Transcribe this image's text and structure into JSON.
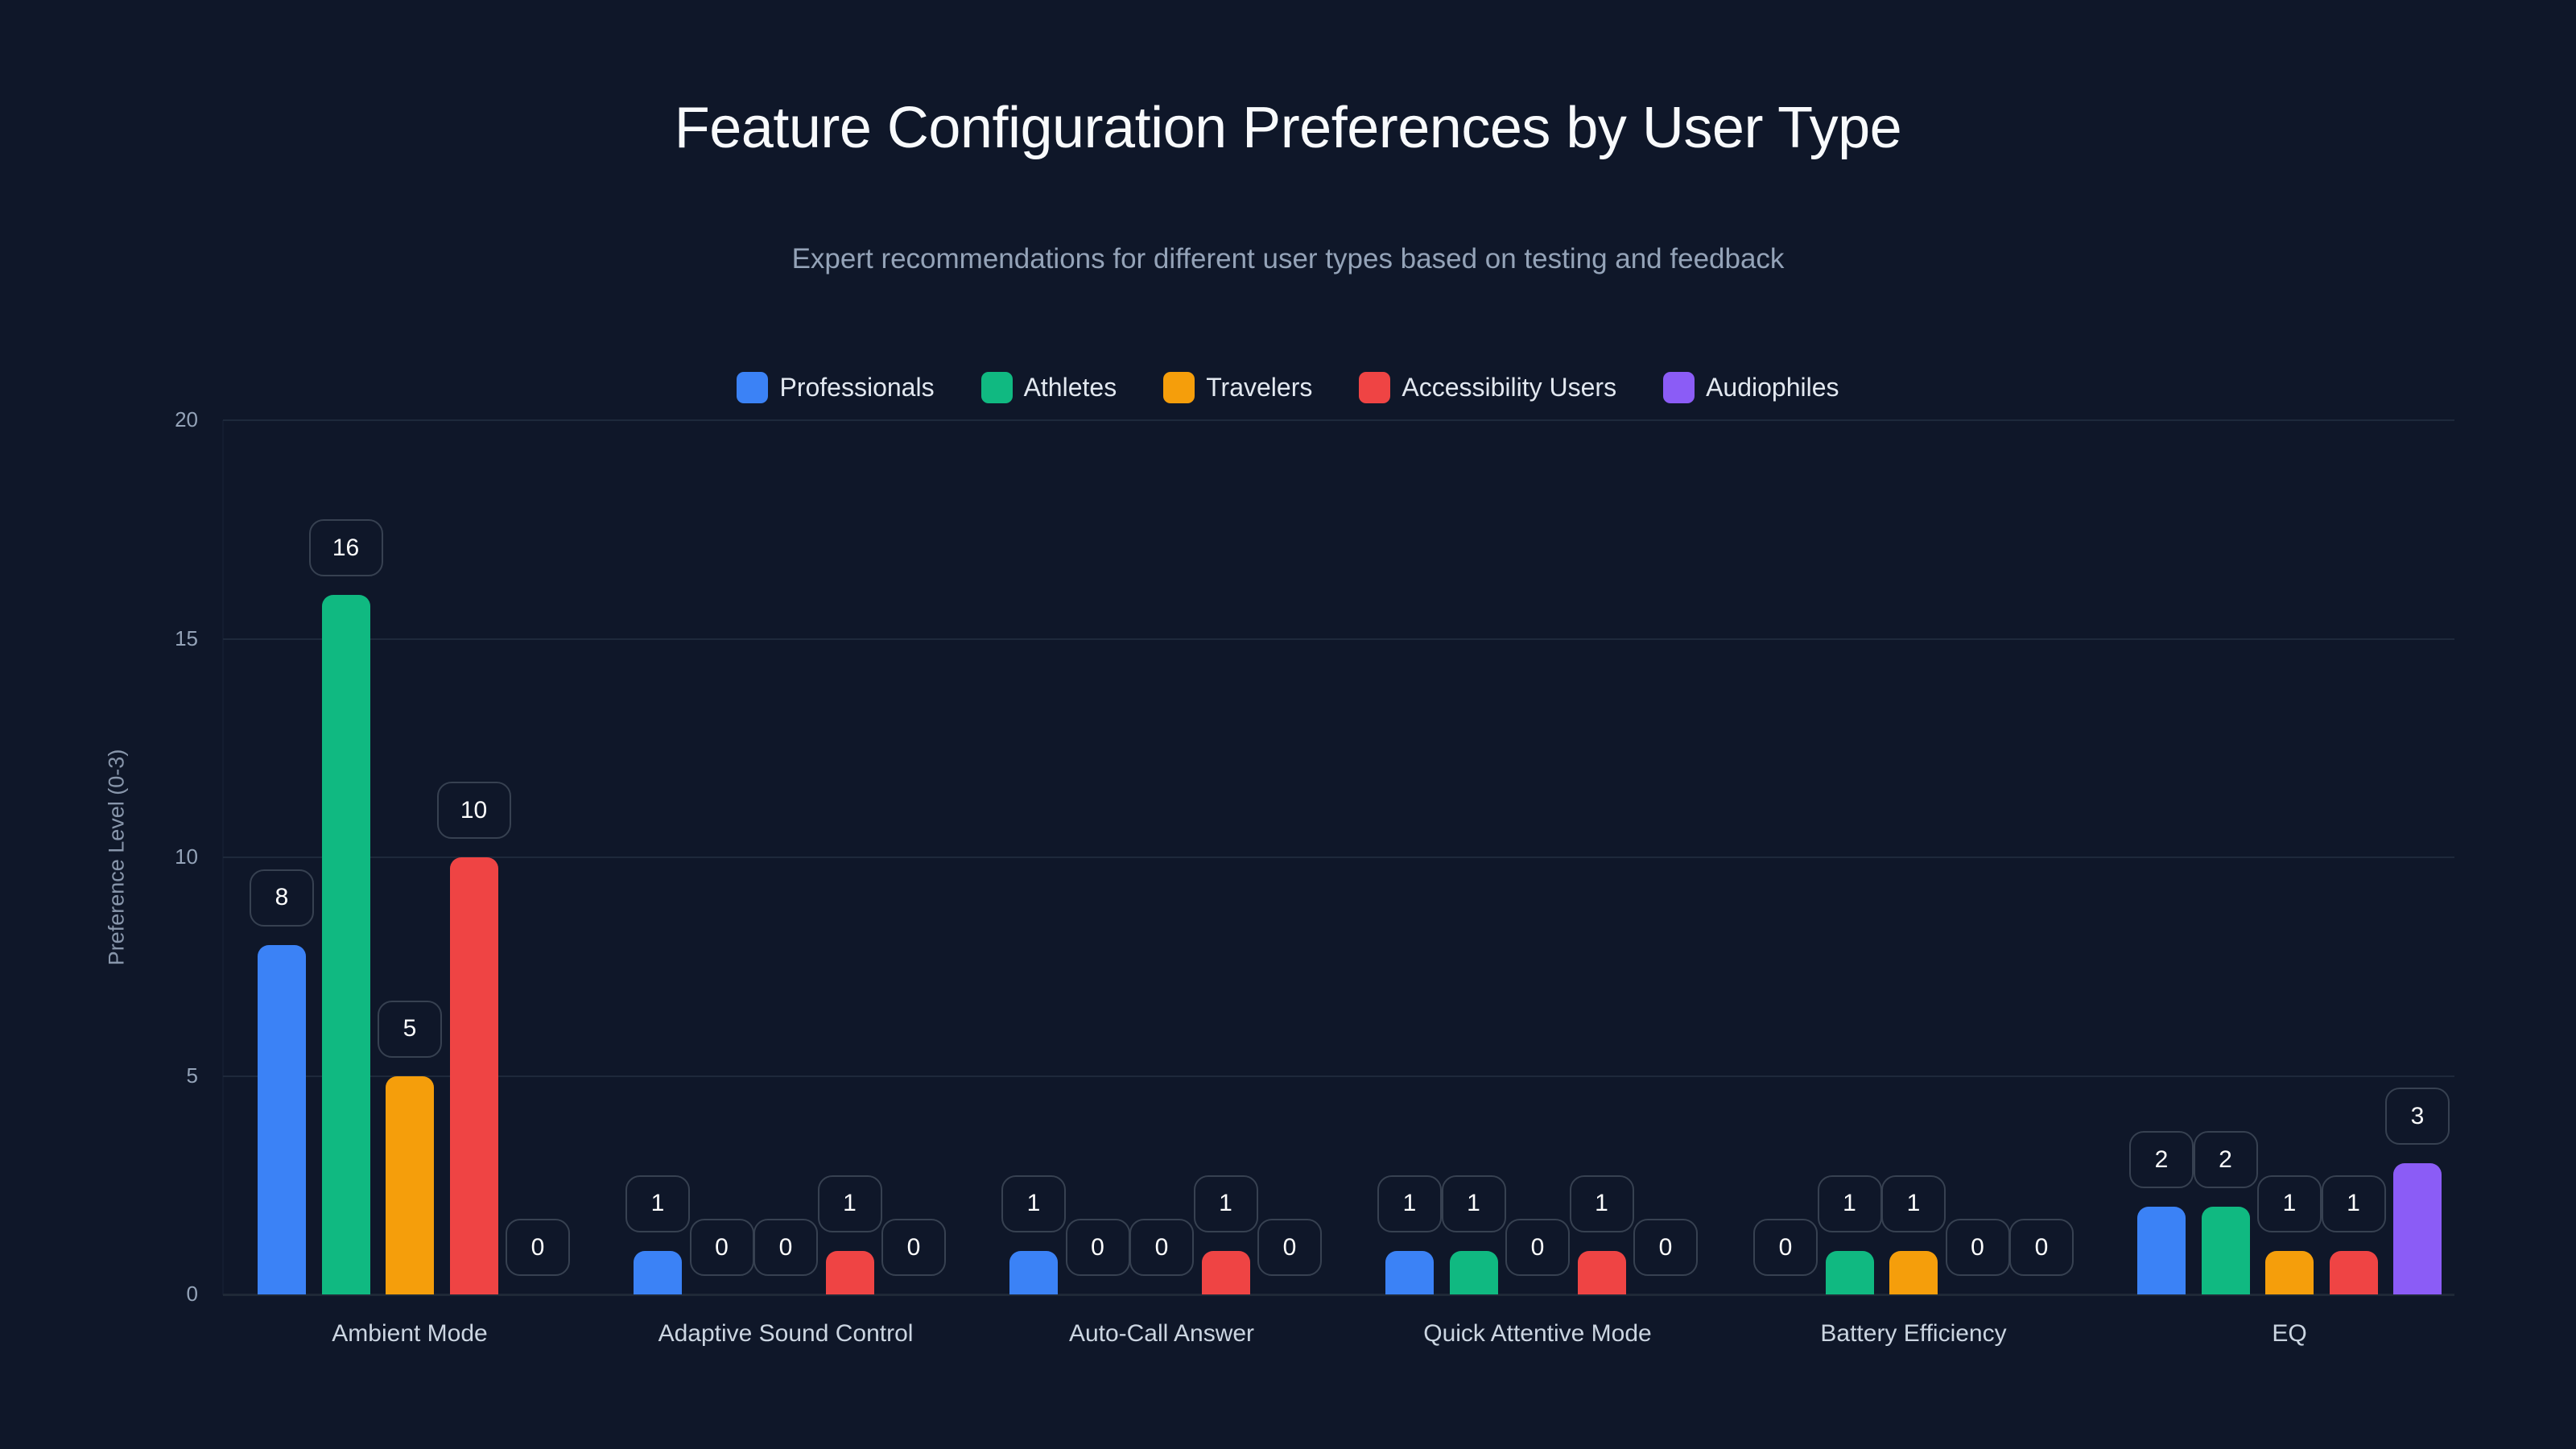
{
  "header": {
    "title": "Feature Configuration Preferences by User Type",
    "subtitle": "Expert recommendations for different user types based on testing and feedback"
  },
  "legend": [
    {
      "label": "Professionals",
      "color": "#3b82f6"
    },
    {
      "label": "Athletes",
      "color": "#10b981"
    },
    {
      "label": "Travelers",
      "color": "#f59e0b"
    },
    {
      "label": "Accessibility Users",
      "color": "#ef4444"
    },
    {
      "label": "Audiophiles",
      "color": "#8b5cf6"
    }
  ],
  "axes": {
    "ylabel": "Preference Level (0-3)",
    "yticks": [
      "0",
      "5",
      "10",
      "15",
      "20"
    ]
  },
  "chart_data": {
    "type": "bar",
    "title": "Feature Configuration Preferences by User Type",
    "subtitle": "Expert recommendations for different user types based on testing and feedback",
    "xlabel": "",
    "ylabel": "Preference Level (0-3)",
    "ylim": [
      0,
      20
    ],
    "yticks": [
      0,
      5,
      10,
      15,
      20
    ],
    "grid": true,
    "legend_position": "top",
    "categories": [
      "Ambient Mode",
      "Adaptive Sound Control",
      "Auto-Call Answer",
      "Quick Attentive Mode",
      "Battery Efficiency",
      "EQ"
    ],
    "series": [
      {
        "name": "Professionals",
        "color": "#3b82f6",
        "values": [
          8,
          1,
          1,
          1,
          0,
          2
        ]
      },
      {
        "name": "Athletes",
        "color": "#10b981",
        "values": [
          16,
          0,
          0,
          1,
          1,
          2
        ]
      },
      {
        "name": "Travelers",
        "color": "#f59e0b",
        "values": [
          5,
          0,
          0,
          0,
          1,
          1
        ]
      },
      {
        "name": "Accessibility Users",
        "color": "#ef4444",
        "values": [
          10,
          1,
          1,
          1,
          0,
          1
        ]
      },
      {
        "name": "Audiophiles",
        "color": "#8b5cf6",
        "values": [
          0,
          0,
          0,
          0,
          0,
          3
        ]
      }
    ]
  }
}
